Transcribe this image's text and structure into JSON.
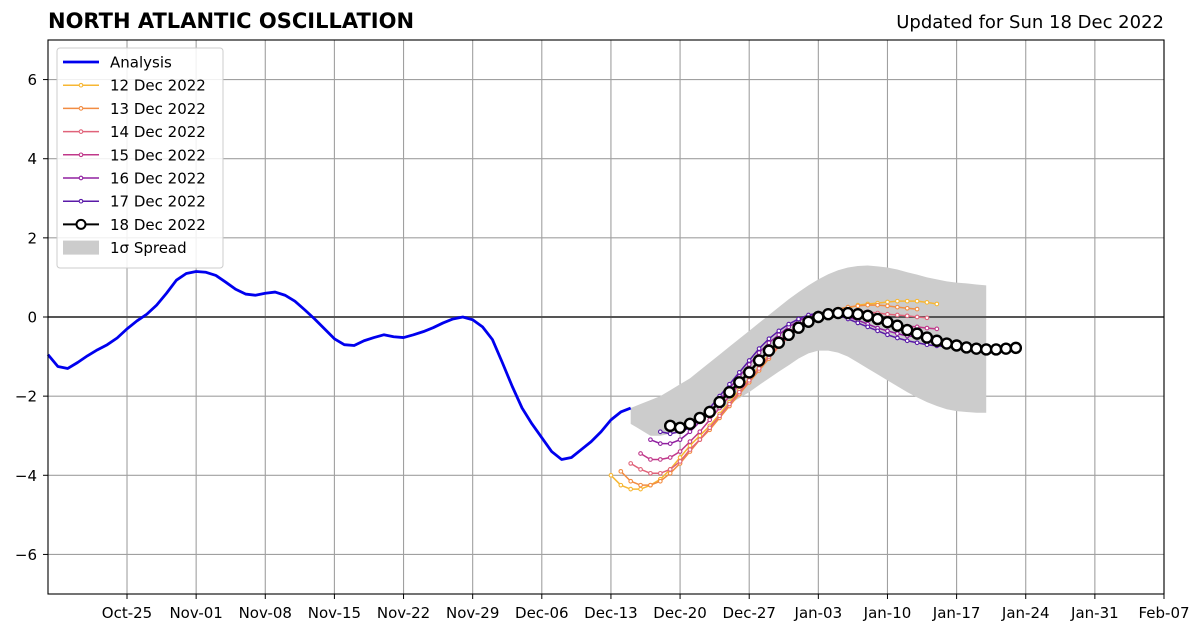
{
  "header": {
    "title": "NORTH ATLANTIC OSCILLATION",
    "updated": "Updated for Sun 18 Dec 2022"
  },
  "chart_data": {
    "type": "line",
    "title": "NORTH ATLANTIC OSCILLATION",
    "subtitle": "Updated for Sun 18 Dec 2022",
    "xlim": [
      "2022-10-17",
      "2023-02-07"
    ],
    "ylim": [
      -7,
      7
    ],
    "x_ticks": [
      "2022-10-25",
      "2022-11-01",
      "2022-11-08",
      "2022-11-15",
      "2022-11-22",
      "2022-11-29",
      "2022-12-06",
      "2022-12-13",
      "2022-12-20",
      "2022-12-27",
      "2023-01-03",
      "2023-01-10",
      "2023-01-17",
      "2023-01-24",
      "2023-01-31",
      "2023-02-07"
    ],
    "x_tick_labels": [
      "Oct-25",
      "Nov-01",
      "Nov-08",
      "Nov-15",
      "Nov-22",
      "Nov-29",
      "Dec-06",
      "Dec-13",
      "Dec-20",
      "Dec-27",
      "Jan-03",
      "Jan-10",
      "Jan-17",
      "Jan-24",
      "Jan-31",
      "Feb-07"
    ],
    "y_ticks": [
      -6,
      -4,
      -2,
      0,
      2,
      4,
      6
    ],
    "y_tick_labels": [
      "−6",
      "−4",
      "−2",
      "0",
      "2",
      "4",
      "6"
    ],
    "grid": true,
    "legend": "upper-left",
    "legend_entries": [
      "Analysis",
      "12 Dec 2022",
      "13 Dec 2022",
      "14 Dec 2022",
      "15 Dec 2022",
      "16 Dec 2022",
      "17 Dec 2022",
      "18 Dec 2022",
      "1σ Spread"
    ],
    "analysis": {
      "name": "Analysis",
      "color": "#0000ee",
      "start": "2022-10-17",
      "values": [
        -0.95,
        -1.25,
        -1.3,
        -1.15,
        -0.98,
        -0.83,
        -0.7,
        -0.53,
        -0.3,
        -0.1,
        0.07,
        0.3,
        0.6,
        0.93,
        1.1,
        1.15,
        1.13,
        1.05,
        0.88,
        0.7,
        0.58,
        0.55,
        0.6,
        0.63,
        0.55,
        0.4,
        0.18,
        -0.05,
        -0.3,
        -0.55,
        -0.7,
        -0.72,
        -0.6,
        -0.52,
        -0.45,
        -0.5,
        -0.52,
        -0.45,
        -0.37,
        -0.27,
        -0.15,
        -0.05,
        0.0,
        -0.07,
        -0.25,
        -0.57,
        -1.15,
        -1.75,
        -2.3,
        -2.7,
        -3.05,
        -3.4,
        -3.6,
        -3.55,
        -3.35,
        -3.15,
        -2.9,
        -2.6,
        -2.4,
        -2.3
      ]
    },
    "spread": {
      "name": "1σ Spread",
      "color": "#cccccc",
      "start": "2022-12-15",
      "upper": [
        -2.3,
        -2.2,
        -2.1,
        -2.0,
        -1.85,
        -1.7,
        -1.55,
        -1.35,
        -1.15,
        -0.95,
        -0.75,
        -0.55,
        -0.35,
        -0.15,
        0.05,
        0.25,
        0.45,
        0.63,
        0.8,
        0.95,
        1.08,
        1.18,
        1.25,
        1.29,
        1.3,
        1.28,
        1.25,
        1.2,
        1.13,
        1.07,
        1.0,
        0.95,
        0.9,
        0.87,
        0.85,
        0.82,
        0.8
      ],
      "lower": [
        -2.7,
        -2.85,
        -3.0,
        -3.0,
        -2.95,
        -2.9,
        -2.8,
        -2.65,
        -2.5,
        -2.35,
        -2.2,
        -2.05,
        -1.9,
        -1.72,
        -1.55,
        -1.38,
        -1.22,
        -1.05,
        -0.92,
        -0.85,
        -0.85,
        -0.9,
        -1.0,
        -1.15,
        -1.3,
        -1.45,
        -1.6,
        -1.75,
        -1.9,
        -2.03,
        -2.15,
        -2.25,
        -2.33,
        -2.38,
        -2.4,
        -2.42,
        -2.42
      ]
    },
    "forecasts": [
      {
        "name": "12 Dec 2022",
        "color": "#f7b733",
        "start": "2022-12-13",
        "values": [
          -4.0,
          -4.25,
          -4.35,
          -4.35,
          -4.25,
          -4.1,
          -3.85,
          -3.55,
          -3.25,
          -3.0,
          -2.75,
          -2.45,
          -2.15,
          -1.85,
          -1.55,
          -1.25,
          -0.95,
          -0.7,
          -0.45,
          -0.25,
          -0.1,
          0.03,
          0.1,
          0.15,
          0.22,
          0.3,
          0.33,
          0.35,
          0.38,
          0.4,
          0.4,
          0.4,
          0.37,
          0.33
        ]
      },
      {
        "name": "13 Dec 2022",
        "color": "#f28c42",
        "start": "2022-12-14",
        "values": [
          -3.9,
          -4.15,
          -4.25,
          -4.25,
          -4.15,
          -3.95,
          -3.7,
          -3.4,
          -3.1,
          -2.85,
          -2.55,
          -2.25,
          -1.95,
          -1.65,
          -1.35,
          -1.05,
          -0.75,
          -0.5,
          -0.28,
          -0.1,
          0.05,
          0.13,
          0.2,
          0.25,
          0.28,
          0.3,
          0.3,
          0.28,
          0.25,
          0.22,
          0.2
        ]
      },
      {
        "name": "14 Dec 2022",
        "color": "#e0637a",
        "start": "2022-12-15",
        "values": [
          -3.7,
          -3.85,
          -3.95,
          -3.95,
          -3.85,
          -3.65,
          -3.35,
          -3.1,
          -2.8,
          -2.5,
          -2.2,
          -1.9,
          -1.6,
          -1.3,
          -1.0,
          -0.73,
          -0.5,
          -0.3,
          -0.13,
          0.0,
          0.1,
          0.15,
          0.17,
          0.15,
          0.13,
          0.1,
          0.07,
          0.05,
          0.03,
          0.0,
          -0.02
        ]
      },
      {
        "name": "15 Dec 2022",
        "color": "#c0388a",
        "start": "2022-12-16",
        "values": [
          -3.45,
          -3.6,
          -3.6,
          -3.55,
          -3.4,
          -3.15,
          -2.9,
          -2.6,
          -2.3,
          -2.0,
          -1.7,
          -1.4,
          -1.1,
          -0.85,
          -0.6,
          -0.38,
          -0.2,
          -0.05,
          0.05,
          0.12,
          0.15,
          0.12,
          0.05,
          -0.03,
          -0.1,
          -0.15,
          -0.2,
          -0.23,
          -0.25,
          -0.28,
          -0.3
        ]
      },
      {
        "name": "16 Dec 2022",
        "color": "#9020a0",
        "start": "2022-12-17",
        "values": [
          -3.1,
          -3.2,
          -3.2,
          -3.1,
          -2.9,
          -2.65,
          -2.4,
          -2.1,
          -1.8,
          -1.5,
          -1.2,
          -0.9,
          -0.65,
          -0.45,
          -0.25,
          -0.1,
          0.02,
          0.1,
          0.12,
          0.08,
          0.0,
          -0.08,
          -0.18,
          -0.28,
          -0.35,
          -0.42,
          -0.48,
          -0.5,
          -0.53,
          -0.55
        ]
      },
      {
        "name": "17 Dec 2022",
        "color": "#5a1aa8",
        "start": "2022-12-18",
        "values": [
          -2.9,
          -2.95,
          -2.9,
          -2.8,
          -2.6,
          -2.3,
          -2.0,
          -1.7,
          -1.4,
          -1.1,
          -0.8,
          -0.55,
          -0.35,
          -0.18,
          -0.05,
          0.05,
          0.1,
          0.1,
          0.05,
          -0.05,
          -0.15,
          -0.25,
          -0.35,
          -0.45,
          -0.53,
          -0.6,
          -0.65,
          -0.7,
          -0.73,
          -0.75,
          -0.77
        ]
      },
      {
        "name": "18 Dec 2022",
        "color": "#000000",
        "start": "2022-12-19",
        "marker": "open-circle",
        "values": [
          -2.75,
          -2.8,
          -2.7,
          -2.55,
          -2.4,
          -2.15,
          -1.9,
          -1.65,
          -1.4,
          -1.1,
          -0.85,
          -0.65,
          -0.45,
          -0.27,
          -0.12,
          0.0,
          0.07,
          0.1,
          0.1,
          0.07,
          0.03,
          -0.05,
          -0.13,
          -0.22,
          -0.33,
          -0.42,
          -0.52,
          -0.6,
          -0.67,
          -0.72,
          -0.77,
          -0.8,
          -0.82,
          -0.82,
          -0.8,
          -0.78
        ]
      }
    ]
  }
}
